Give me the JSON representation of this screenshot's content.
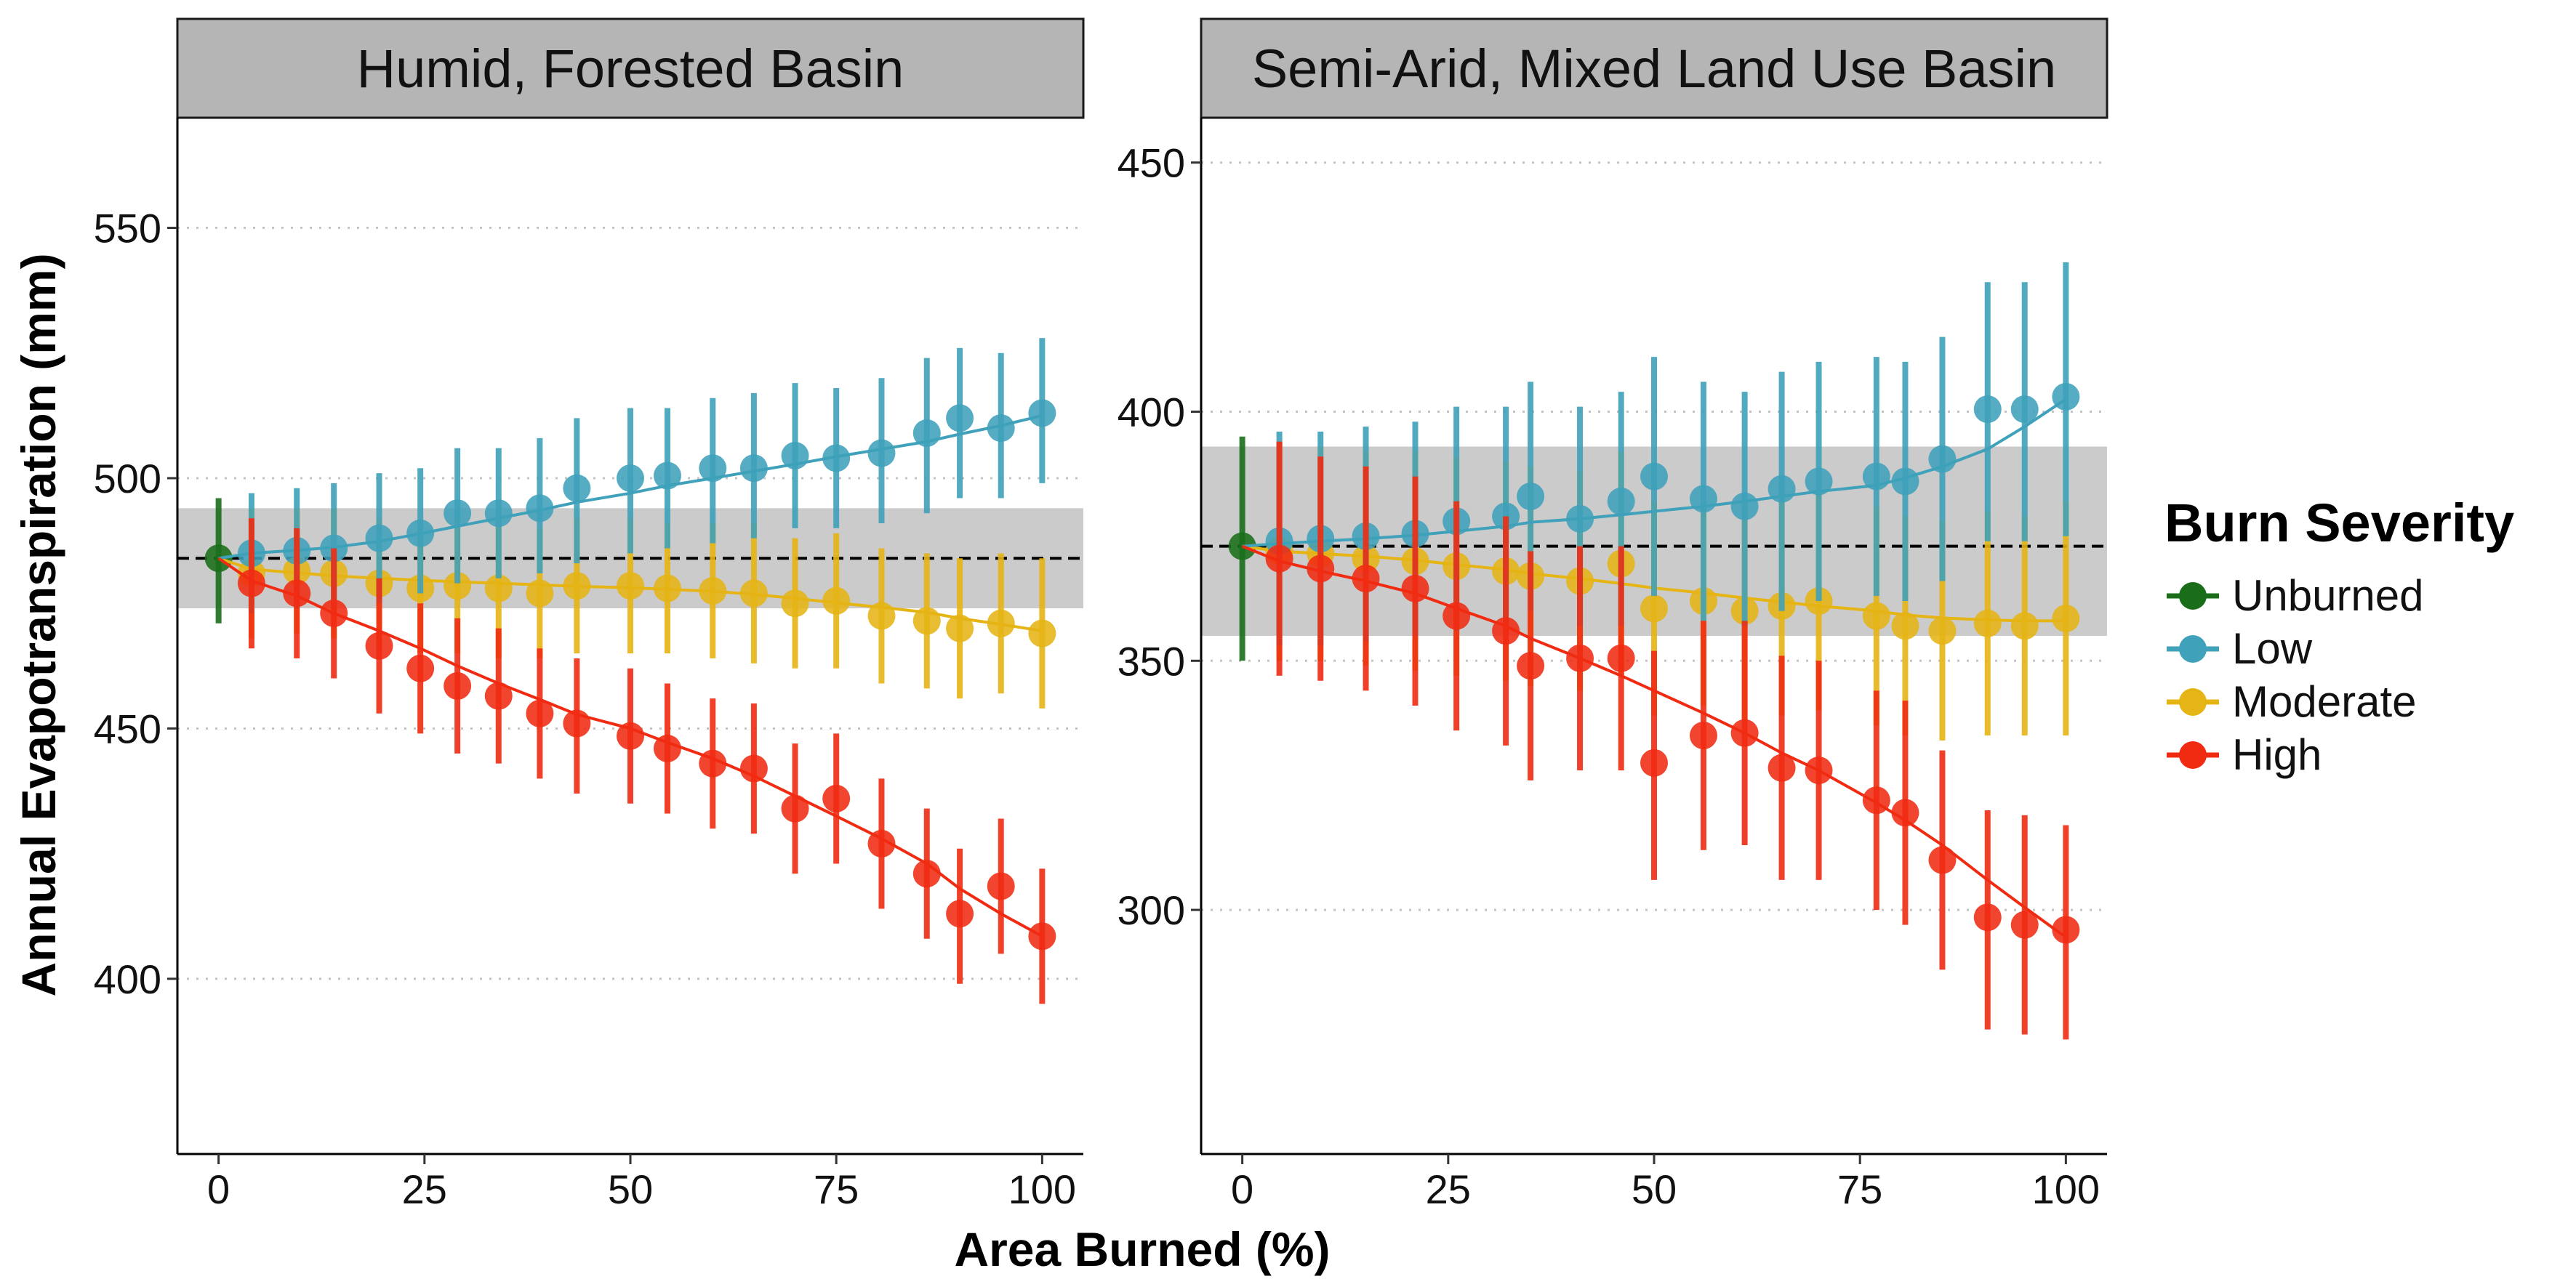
{
  "ylabel": "Annual Evapotranspiration (mm)",
  "xlabel": "Area Burned (%)",
  "legend": {
    "title": "Burn Severity",
    "items": [
      {
        "label": "Unburned",
        "color": "#1a6e1a"
      },
      {
        "label": "Low",
        "color": "#3fa1ba"
      },
      {
        "label": "Moderate",
        "color": "#e5b415"
      },
      {
        "label": "High",
        "color": "#f02b12"
      }
    ]
  },
  "chart_data": [
    {
      "type": "scatter",
      "title": "Humid, Forested Basin",
      "xlim": [
        -5,
        105
      ],
      "ylim": [
        365,
        572
      ],
      "x_ticks": [
        0,
        25,
        50,
        75,
        100
      ],
      "y_ticks": [
        400,
        450,
        500,
        550
      ],
      "gridlines": "horizontal dotted",
      "reference_line": 484,
      "reference_band": [
        474,
        494
      ],
      "series": [
        {
          "name": "Unburned",
          "color": "#1a6e1a",
          "x": [
            0
          ],
          "y": [
            484
          ],
          "lower": [
            471
          ],
          "upper": [
            496
          ]
        },
        {
          "name": "Low",
          "color": "#3fa1ba",
          "x": [
            4,
            9.5,
            14,
            19.5,
            24.5,
            29,
            34,
            39,
            43.5,
            50,
            54.5,
            60,
            65,
            70,
            75,
            80.5,
            86,
            90,
            95,
            100
          ],
          "y": [
            485,
            485.5,
            486,
            488,
            489,
            493,
            493,
            494,
            498,
            500,
            500.5,
            502,
            502,
            504.5,
            504,
            505,
            509,
            512,
            510,
            513
          ],
          "lower": [
            473,
            474,
            474,
            475,
            477,
            479,
            480,
            481,
            483,
            485,
            486,
            487,
            488,
            490,
            490,
            491,
            493,
            496,
            496,
            499
          ],
          "upper": [
            497,
            498,
            499,
            501,
            502,
            506,
            506,
            508,
            512,
            514,
            514,
            516,
            517,
            519,
            518,
            520,
            524,
            526,
            525,
            528
          ],
          "fit": [
            485,
            485.6,
            486.2,
            487.4,
            488.9,
            490.4,
            492,
            493.6,
            495.2,
            497,
            498.5,
            500,
            501.4,
            502.8,
            504.3,
            505.8,
            507.3,
            508.8,
            510.5,
            512.5
          ]
        },
        {
          "name": "Moderate",
          "color": "#e5b415",
          "x": [
            4,
            9.5,
            14,
            19.5,
            24.5,
            29,
            34,
            39,
            43.5,
            50,
            54.5,
            60,
            65,
            70,
            75,
            80.5,
            86,
            90,
            95,
            100
          ],
          "y": [
            481,
            481.5,
            481,
            479,
            478,
            478.5,
            478,
            477,
            478.5,
            478.5,
            478,
            477.5,
            477,
            475,
            475.5,
            472.5,
            471.5,
            470,
            471,
            469
          ],
          "lower": [
            468,
            469,
            468,
            466,
            465,
            465,
            464,
            464,
            465,
            465,
            465,
            464,
            463,
            462,
            462,
            459,
            458,
            456,
            457,
            454
          ],
          "upper": [
            494,
            494,
            494,
            492,
            491,
            492,
            492,
            490,
            492,
            492,
            491,
            491,
            491,
            488,
            489,
            486,
            485,
            484,
            485,
            484
          ],
          "fit": [
            481.8,
            481.1,
            480.5,
            480,
            479.6,
            479.3,
            479,
            478.7,
            478.4,
            478.1,
            477.8,
            477.4,
            476.8,
            476,
            475.1,
            474.2,
            473.2,
            472,
            470.8,
            469.5
          ]
        },
        {
          "name": "High",
          "color": "#f02b12",
          "x": [
            4,
            9.5,
            14,
            19.5,
            24.5,
            29,
            34,
            39,
            43.5,
            50,
            54.5,
            60,
            65,
            70,
            75,
            80.5,
            86,
            90,
            95,
            100
          ],
          "y": [
            479,
            477,
            473,
            466.5,
            462,
            458.5,
            456.5,
            453,
            451,
            448.5,
            446,
            443,
            442,
            434,
            436,
            427,
            421,
            413,
            418.5,
            408.5
          ],
          "lower": [
            466,
            464,
            460,
            453,
            449,
            445,
            443,
            440,
            437,
            435,
            433,
            430,
            429,
            421,
            423,
            414,
            408,
            399,
            405,
            395
          ],
          "upper": [
            492,
            490,
            486,
            480,
            475,
            472,
            470,
            466,
            464,
            462,
            459,
            456,
            455,
            447,
            449,
            440,
            434,
            426,
            432,
            422
          ],
          "fit": [
            479.5,
            476.5,
            473,
            469.5,
            466,
            462.5,
            459,
            455.8,
            452.8,
            450,
            447.2,
            444,
            440.5,
            436.5,
            432.5,
            428,
            423,
            418,
            413,
            408.5
          ]
        }
      ]
    },
    {
      "type": "scatter",
      "title": "Semi-Arid, Mixed Land Use Basin",
      "xlim": [
        -5,
        105
      ],
      "ylim": [
        251,
        459
      ],
      "x_ticks": [
        0,
        25,
        50,
        75,
        100
      ],
      "y_ticks": [
        300,
        350,
        400,
        450
      ],
      "gridlines": "horizontal dotted",
      "reference_line": 373,
      "reference_band": [
        355,
        393
      ],
      "series": [
        {
          "name": "Unburned",
          "color": "#1a6e1a",
          "x": [
            0
          ],
          "y": [
            373
          ],
          "lower": [
            350
          ],
          "upper": [
            395
          ]
        },
        {
          "name": "Low",
          "color": "#3fa1ba",
          "x": [
            4.5,
            9.5,
            15,
            21,
            26,
            32,
            35,
            41,
            46,
            50,
            56,
            61,
            65.5,
            70,
            77,
            80.5,
            85,
            90.5,
            95,
            100
          ],
          "y": [
            374,
            374.5,
            375,
            375.5,
            378,
            379,
            383,
            378.5,
            382,
            387,
            382.5,
            381,
            384.5,
            386,
            387,
            386,
            390.5,
            400.5,
            400.5,
            403
          ],
          "lower": [
            353,
            353,
            354,
            355,
            356,
            357,
            360,
            357,
            357,
            363,
            358,
            357,
            360,
            362,
            363,
            362,
            366,
            374,
            374,
            375
          ],
          "upper": [
            396,
            396,
            397,
            398,
            401,
            401,
            406,
            401,
            404,
            411,
            406,
            404,
            408,
            410,
            411,
            410,
            415,
            426,
            426,
            430
          ],
          "fit": [
            373.5,
            374,
            374.5,
            375.2,
            376,
            377,
            377.8,
            378.5,
            379.3,
            380,
            381,
            382,
            383,
            384,
            385.2,
            386.7,
            389,
            392.5,
            397,
            402.5
          ]
        },
        {
          "name": "Moderate",
          "color": "#e5b415",
          "x": [
            4.5,
            9.5,
            15,
            21,
            26,
            32,
            35,
            41,
            46,
            50,
            56,
            61,
            65.5,
            70,
            77,
            80.5,
            85,
            90.5,
            95,
            100
          ],
          "y": [
            372,
            371.5,
            370.5,
            370,
            369,
            368,
            367,
            366,
            369.5,
            360.5,
            362,
            360,
            361,
            362,
            359,
            357,
            356,
            357.5,
            357,
            358.5
          ],
          "lower": [
            350,
            350,
            349,
            348,
            347,
            346,
            345,
            344,
            347,
            339,
            341,
            338,
            339,
            340,
            337,
            335,
            334,
            335,
            335,
            335
          ],
          "upper": [
            394,
            393,
            392,
            392,
            391,
            390,
            389,
            388,
            392,
            382,
            383,
            382,
            383,
            384,
            381,
            379,
            378,
            380,
            379,
            382
          ],
          "fit": [
            372,
            371.5,
            371,
            370.2,
            369.3,
            368.3,
            367.5,
            366.5,
            365.5,
            364.6,
            363.6,
            362.6,
            361.8,
            361,
            360,
            359.2,
            358.6,
            358.2,
            358,
            358
          ]
        },
        {
          "name": "High",
          "color": "#f02b12",
          "x": [
            4.5,
            9.5,
            15,
            21,
            26,
            32,
            35,
            41,
            46,
            50,
            56,
            61,
            65.5,
            70,
            77,
            80.5,
            85,
            90.5,
            95,
            100
          ],
          "y": [
            370.5,
            368.5,
            366.5,
            364.5,
            359,
            356,
            349,
            350.5,
            350.5,
            329.5,
            335,
            335.5,
            328.5,
            328,
            322,
            319.5,
            310,
            298.5,
            297,
            296
          ],
          "lower": [
            347,
            346,
            344,
            341,
            336,
            333,
            326,
            328,
            328,
            306,
            312,
            313,
            306,
            306,
            300,
            297,
            288,
            276,
            275,
            274
          ],
          "upper": [
            394,
            391,
            389,
            387,
            382,
            379,
            372,
            373,
            373,
            352,
            358,
            358,
            351,
            350,
            344,
            342,
            332,
            320,
            319,
            317
          ],
          "fit": [
            370,
            368,
            366,
            363.5,
            360.5,
            357,
            354.5,
            350.5,
            347,
            344,
            339.5,
            335.5,
            331.5,
            328,
            321.5,
            318,
            313,
            306,
            300.5,
            294.5
          ]
        }
      ]
    }
  ]
}
